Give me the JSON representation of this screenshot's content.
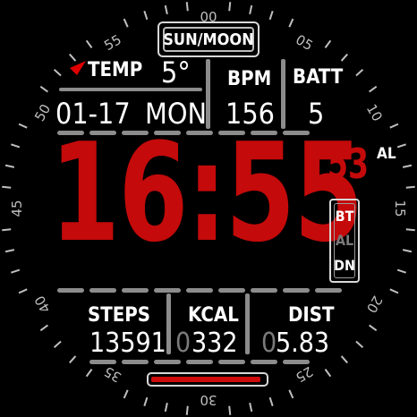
{
  "bezel": {
    "numbers": [
      "00",
      "05",
      "10",
      "15",
      "20",
      "25",
      "30",
      "35",
      "40",
      "45",
      "50",
      "55"
    ]
  },
  "header": {
    "sun_moon_label": "SUN/MOON"
  },
  "top_stats": {
    "temp_label": "TEMP",
    "temp_value": "5°",
    "bpm_label": "BPM",
    "bpm_value": "156",
    "batt_label": "BATT",
    "batt_value": "5",
    "date": "01-17",
    "weekday": "MON"
  },
  "time": {
    "hours_minutes": "16:55",
    "seconds": "53",
    "alarm_tag": "AL"
  },
  "status_box": {
    "bt": "BT",
    "al": "AL",
    "dn": "DN"
  },
  "bottom_stats": {
    "steps_label": "STEPS",
    "steps_value": "13591",
    "kcal_label": "KCAL",
    "kcal_prefix": "0",
    "kcal_value": "332",
    "dist_label": "DIST",
    "dist_prefix": "0",
    "dist_value": "5.83"
  },
  "progress": {
    "fill_fraction": 0.97
  },
  "colors": {
    "accent_red": "#c40a0a",
    "text_white": "#ffffff",
    "separator_grey": "#8c8c8c",
    "dim_grey": "#7a7a7a"
  },
  "icons": {
    "marker": "red-triangle-pointer"
  }
}
